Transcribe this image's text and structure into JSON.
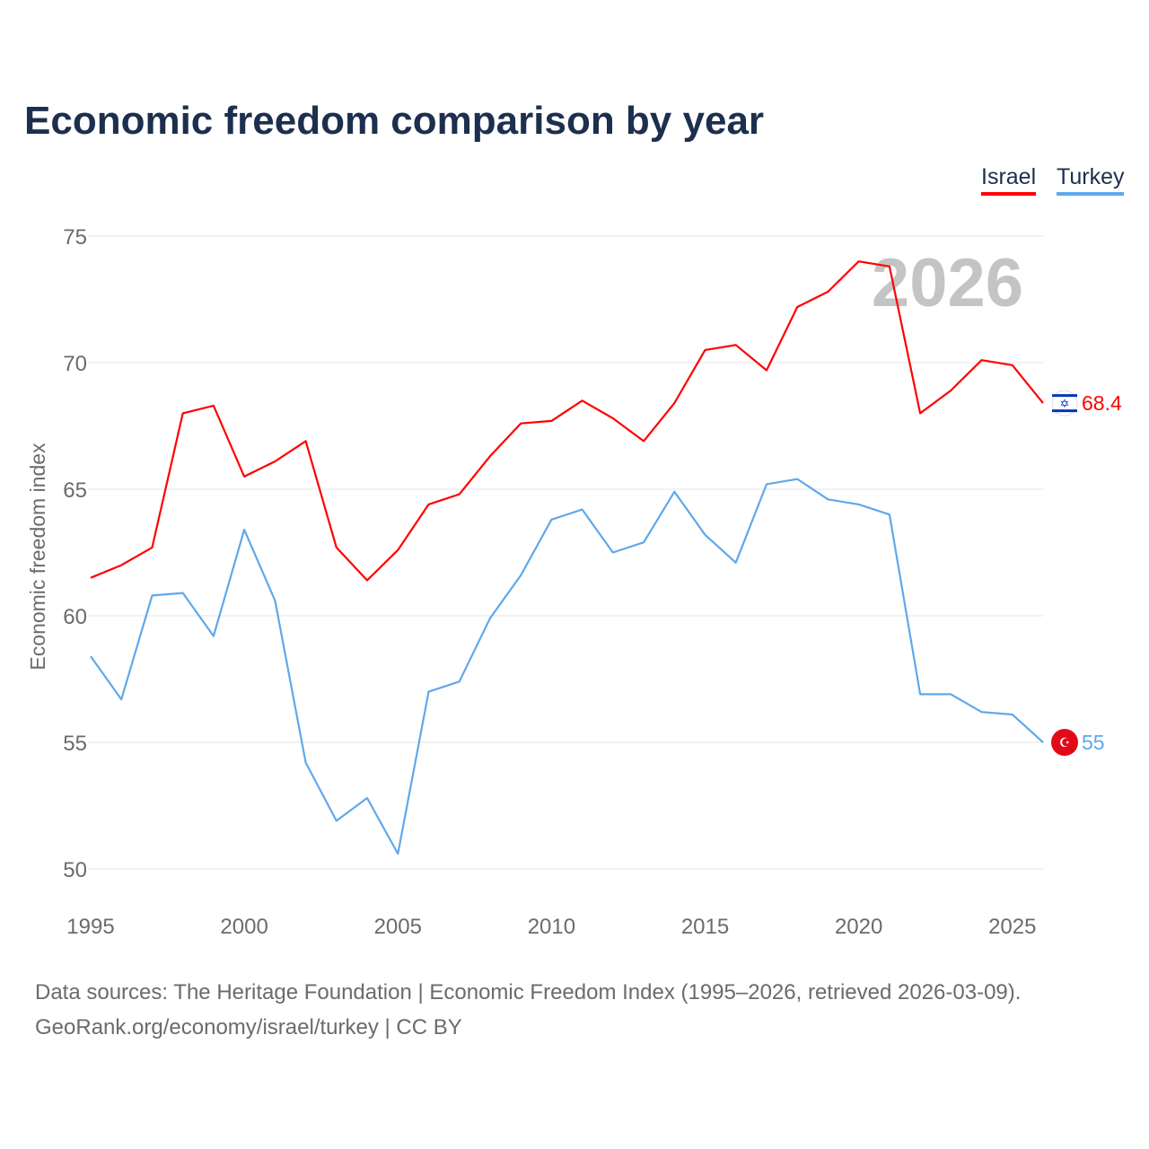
{
  "chart_data": {
    "type": "line",
    "title": "Economic freedom comparison by year",
    "xlabel": "",
    "ylabel": "Economic freedom index",
    "ylim": [
      50,
      75
    ],
    "xlim": [
      1995,
      2026
    ],
    "yticks": [
      "50",
      "55",
      "60",
      "65",
      "70",
      "75"
    ],
    "xticks": [
      "1995",
      "2000",
      "2005",
      "2010",
      "2015",
      "2020",
      "2025"
    ],
    "watermark_year": "2026",
    "legend_position": "top-right",
    "x": [
      1995,
      1996,
      1997,
      1998,
      1999,
      2000,
      2001,
      2002,
      2003,
      2004,
      2005,
      2006,
      2007,
      2008,
      2009,
      2010,
      2011,
      2012,
      2013,
      2014,
      2015,
      2016,
      2017,
      2018,
      2019,
      2020,
      2021,
      2022,
      2023,
      2024,
      2025,
      2026
    ],
    "series": [
      {
        "name": "Israel",
        "color": "#ff0000",
        "end_label": "68.4",
        "values": [
          61.5,
          62.0,
          62.7,
          68.0,
          68.3,
          65.5,
          66.1,
          66.9,
          62.7,
          61.4,
          62.6,
          64.4,
          64.8,
          66.3,
          67.6,
          67.7,
          68.5,
          67.8,
          66.9,
          68.4,
          70.5,
          70.7,
          69.7,
          72.2,
          72.8,
          74.0,
          73.8,
          68.0,
          68.9,
          70.1,
          69.9,
          68.4
        ]
      },
      {
        "name": "Turkey",
        "color": "#5fa8ec",
        "end_label": "55",
        "values": [
          58.4,
          56.7,
          60.8,
          60.9,
          59.2,
          63.4,
          60.6,
          54.2,
          51.9,
          52.8,
          50.6,
          57.0,
          57.4,
          59.9,
          61.6,
          63.8,
          64.2,
          62.5,
          62.9,
          64.9,
          63.2,
          62.1,
          65.2,
          65.4,
          64.6,
          64.4,
          64.0,
          56.9,
          56.9,
          56.2,
          56.1,
          55.0
        ]
      }
    ]
  },
  "footer": {
    "line1": "Data sources: The Heritage Foundation | Economic Freedom Index (1995–2026, retrieved 2026-03-09).",
    "line2": "GeoRank.org/economy/israel/turkey | CC BY"
  }
}
